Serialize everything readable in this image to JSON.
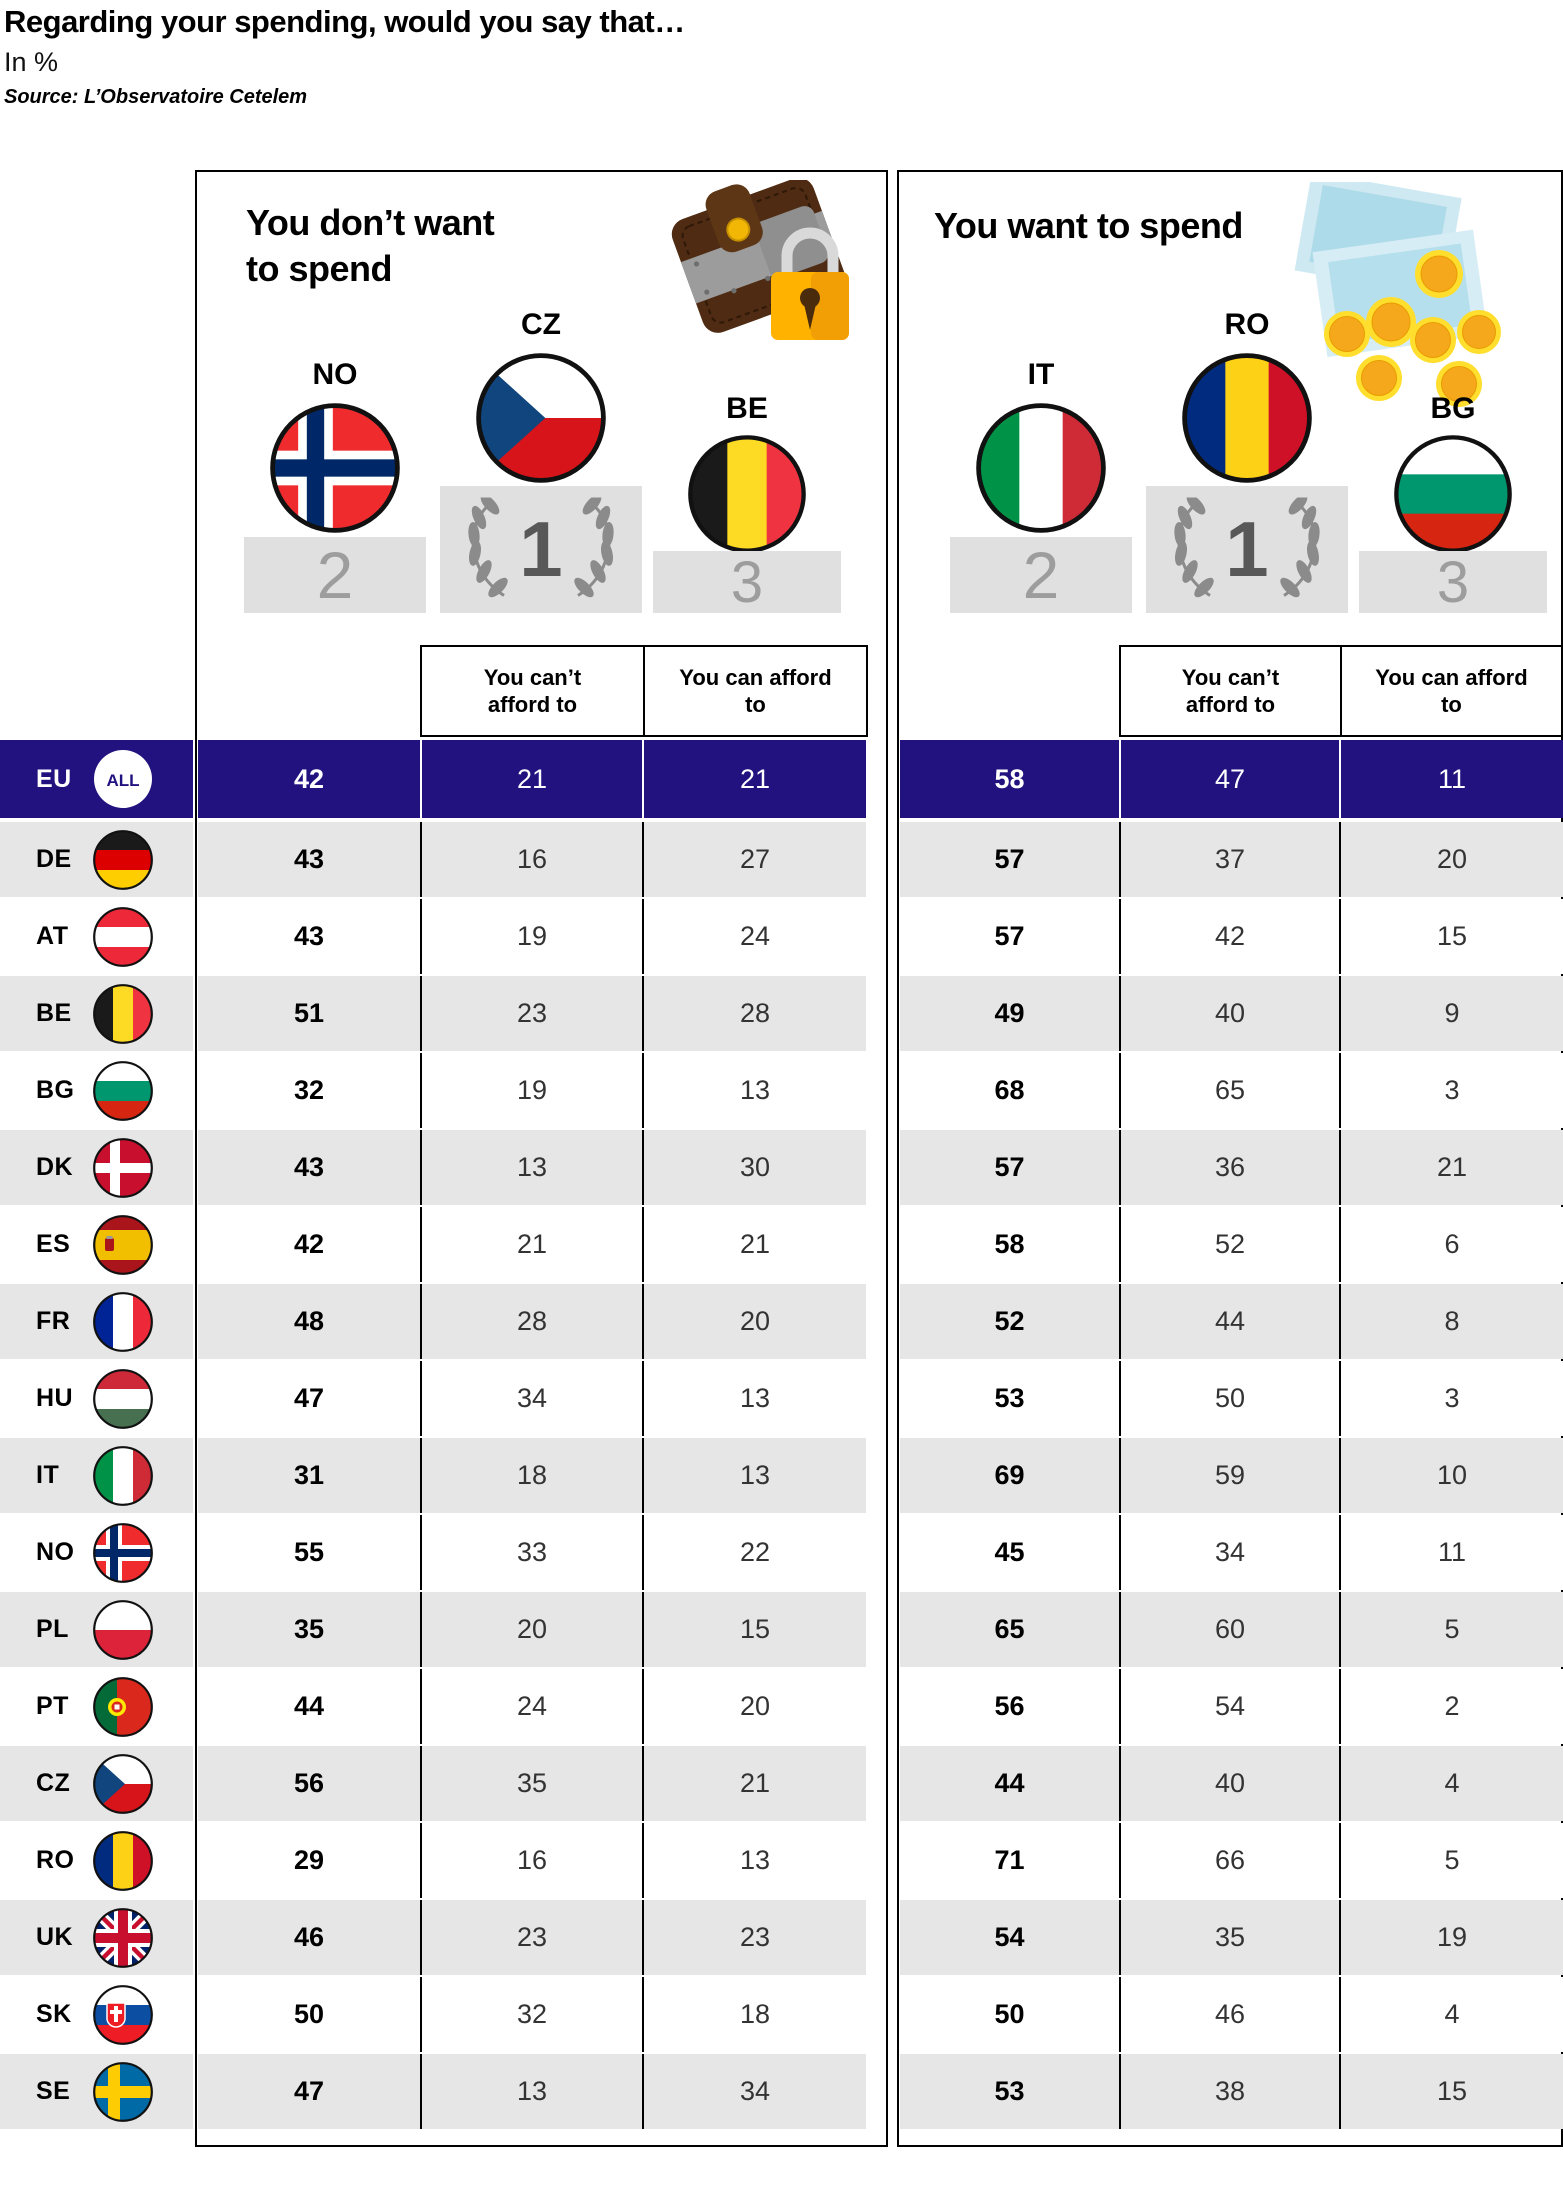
{
  "header": {
    "title": "Regarding your spending, would you say that…",
    "subtitle": "In %",
    "source": "Source: L’Observatoire Cetelem"
  },
  "panels": [
    {
      "title_lines": [
        "You don’t want",
        "to spend"
      ],
      "icon": "wallet-padlock-icon",
      "col_headers": [
        "You can’t afford to",
        "You can afford to"
      ],
      "podium": {
        "first": {
          "code": "CZ"
        },
        "second": {
          "code": "NO"
        },
        "third": {
          "code": "BE"
        }
      }
    },
    {
      "title_lines": [
        "You want to spend"
      ],
      "icon": "banknotes-coins-icon",
      "col_headers": [
        "You can’t afford to",
        "You can afford to"
      ],
      "podium": {
        "first": {
          "code": "RO"
        },
        "second": {
          "code": "IT"
        },
        "third": {
          "code": "BG"
        }
      }
    }
  ],
  "ranks": {
    "first": "1",
    "second": "2",
    "third": "3"
  },
  "eu_badge": "ALL",
  "colors": {
    "highlight_row": "#221280",
    "row_alt": "#e6e6e6",
    "podium_block": "#e0e0e0",
    "rank_number": "#9d9d9d"
  },
  "table": {
    "rows": [
      {
        "code": "EU",
        "flag": "ALL",
        "dont": {
          "total": "42",
          "cant": "21",
          "can": "21"
        },
        "want": {
          "total": "58",
          "cant": "47",
          "can": "11"
        }
      },
      {
        "code": "DE",
        "flag": "DE",
        "dont": {
          "total": "43",
          "cant": "16",
          "can": "27"
        },
        "want": {
          "total": "57",
          "cant": "37",
          "can": "20"
        }
      },
      {
        "code": "AT",
        "flag": "AT",
        "dont": {
          "total": "43",
          "cant": "19",
          "can": "24"
        },
        "want": {
          "total": "57",
          "cant": "42",
          "can": "15"
        }
      },
      {
        "code": "BE",
        "flag": "BE",
        "dont": {
          "total": "51",
          "cant": "23",
          "can": "28"
        },
        "want": {
          "total": "49",
          "cant": "40",
          "can": "9"
        }
      },
      {
        "code": "BG",
        "flag": "BG",
        "dont": {
          "total": "32",
          "cant": "19",
          "can": "13"
        },
        "want": {
          "total": "68",
          "cant": "65",
          "can": "3"
        }
      },
      {
        "code": "DK",
        "flag": "DK",
        "dont": {
          "total": "43",
          "cant": "13",
          "can": "30"
        },
        "want": {
          "total": "57",
          "cant": "36",
          "can": "21"
        }
      },
      {
        "code": "ES",
        "flag": "ES",
        "dont": {
          "total": "42",
          "cant": "21",
          "can": "21"
        },
        "want": {
          "total": "58",
          "cant": "52",
          "can": "6"
        }
      },
      {
        "code": "FR",
        "flag": "FR",
        "dont": {
          "total": "48",
          "cant": "28",
          "can": "20"
        },
        "want": {
          "total": "52",
          "cant": "44",
          "can": "8"
        }
      },
      {
        "code": "HU",
        "flag": "HU",
        "dont": {
          "total": "47",
          "cant": "34",
          "can": "13"
        },
        "want": {
          "total": "53",
          "cant": "50",
          "can": "3"
        }
      },
      {
        "code": "IT",
        "flag": "IT",
        "dont": {
          "total": "31",
          "cant": "18",
          "can": "13"
        },
        "want": {
          "total": "69",
          "cant": "59",
          "can": "10"
        }
      },
      {
        "code": "NO",
        "flag": "NO",
        "dont": {
          "total": "55",
          "cant": "33",
          "can": "22"
        },
        "want": {
          "total": "45",
          "cant": "34",
          "can": "11"
        }
      },
      {
        "code": "PL",
        "flag": "PL",
        "dont": {
          "total": "35",
          "cant": "20",
          "can": "15"
        },
        "want": {
          "total": "65",
          "cant": "60",
          "can": "5"
        }
      },
      {
        "code": "PT",
        "flag": "PT",
        "dont": {
          "total": "44",
          "cant": "24",
          "can": "20"
        },
        "want": {
          "total": "56",
          "cant": "54",
          "can": "2"
        }
      },
      {
        "code": "CZ",
        "flag": "CZ",
        "dont": {
          "total": "56",
          "cant": "35",
          "can": "21"
        },
        "want": {
          "total": "44",
          "cant": "40",
          "can": "4"
        }
      },
      {
        "code": "RO",
        "flag": "RO",
        "dont": {
          "total": "29",
          "cant": "16",
          "can": "13"
        },
        "want": {
          "total": "71",
          "cant": "66",
          "can": "5"
        }
      },
      {
        "code": "UK",
        "flag": "UK",
        "dont": {
          "total": "46",
          "cant": "23",
          "can": "23"
        },
        "want": {
          "total": "54",
          "cant": "35",
          "can": "19"
        }
      },
      {
        "code": "SK",
        "flag": "SK",
        "dont": {
          "total": "50",
          "cant": "32",
          "can": "18"
        },
        "want": {
          "total": "50",
          "cant": "46",
          "can": "4"
        }
      },
      {
        "code": "SE",
        "flag": "SE",
        "dont": {
          "total": "47",
          "cant": "13",
          "can": "34"
        },
        "want": {
          "total": "53",
          "cant": "38",
          "can": "15"
        }
      }
    ]
  },
  "chart_data": {
    "type": "table",
    "title": "Regarding your spending, would you say that…",
    "unit": "%",
    "source": "L’Observatoire Cetelem",
    "categories": [
      "EU",
      "DE",
      "AT",
      "BE",
      "BG",
      "DK",
      "ES",
      "FR",
      "HU",
      "IT",
      "NO",
      "PL",
      "PT",
      "CZ",
      "RO",
      "UK",
      "SK",
      "SE"
    ],
    "series": [
      {
        "name": "You don’t want to spend — total",
        "values": [
          42,
          43,
          43,
          51,
          32,
          43,
          42,
          48,
          47,
          31,
          55,
          35,
          44,
          56,
          29,
          46,
          50,
          47
        ]
      },
      {
        "name": "You don’t want to spend — You can’t afford to",
        "values": [
          21,
          16,
          19,
          23,
          19,
          13,
          21,
          28,
          34,
          18,
          33,
          20,
          24,
          35,
          16,
          23,
          32,
          13
        ]
      },
      {
        "name": "You don’t want to spend — You can afford to",
        "values": [
          21,
          27,
          24,
          28,
          13,
          30,
          21,
          20,
          13,
          13,
          22,
          15,
          20,
          21,
          13,
          23,
          18,
          34
        ]
      },
      {
        "name": "You want to spend — total",
        "values": [
          58,
          57,
          57,
          49,
          68,
          57,
          58,
          52,
          53,
          69,
          45,
          65,
          56,
          44,
          71,
          54,
          50,
          53
        ]
      },
      {
        "name": "You want to spend — You can’t afford to",
        "values": [
          47,
          37,
          42,
          40,
          65,
          36,
          52,
          44,
          50,
          59,
          34,
          60,
          54,
          40,
          66,
          35,
          46,
          38
        ]
      },
      {
        "name": "You want to spend — You can afford to",
        "values": [
          11,
          20,
          15,
          9,
          3,
          21,
          6,
          8,
          3,
          10,
          11,
          5,
          2,
          4,
          5,
          19,
          4,
          15
        ]
      }
    ],
    "podiums": {
      "dont_want_top3": [
        "CZ",
        "NO",
        "BE"
      ],
      "want_top3": [
        "RO",
        "IT",
        "BG"
      ]
    }
  }
}
